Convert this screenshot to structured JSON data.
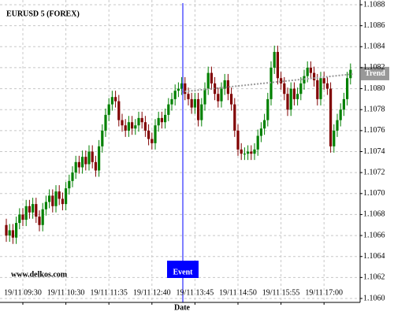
{
  "chart_data": {
    "type": "candlestick",
    "title": "EURUSD 5 (FOREX)",
    "x_label": "Date",
    "watermark": "www.delkos.com",
    "up_color": "#008000",
    "down_color": "#800000",
    "grid": true,
    "ylim": [
      1.106,
      1.1088
    ],
    "yticks": [
      {
        "value": 1.106,
        "label": "1.1060"
      },
      1.1062,
      1.1064,
      1.1066,
      1.1068,
      {
        "value": 1.107,
        "label": "1.1070"
      },
      1.1072,
      1.1074,
      1.1076,
      1.1078,
      {
        "value": 1.108,
        "label": "1.1080"
      },
      1.1082,
      1.1084,
      1.1086,
      1.1088
    ],
    "categories": [
      null,
      null,
      null,
      null,
      null,
      "19/11 09:30",
      null,
      null,
      null,
      null,
      null,
      null,
      null,
      null,
      null,
      null,
      null,
      null,
      "19/11 10:30",
      null,
      null,
      null,
      null,
      null,
      null,
      null,
      null,
      null,
      null,
      null,
      null,
      "19/11 11:35",
      null,
      null,
      null,
      null,
      null,
      null,
      null,
      null,
      null,
      null,
      null,
      null,
      "19/11 12:40",
      null,
      null,
      null,
      null,
      null,
      null,
      null,
      null,
      null,
      null,
      null,
      null,
      "19/11 13:45",
      null,
      null,
      null,
      null,
      null,
      null,
      null,
      null,
      null,
      null,
      null,
      null,
      "19/11 14:50",
      null,
      null,
      null,
      null,
      null,
      null,
      null,
      null,
      null,
      null,
      null,
      null,
      "19/11 15:55",
      null,
      null,
      null,
      null,
      null,
      null,
      null,
      null,
      null,
      null,
      null,
      null,
      "19/11 17:00",
      null,
      null,
      null,
      null,
      null,
      null,
      null,
      null
    ],
    "open": [
      1.1067,
      1.1066,
      1.10665,
      1.10658,
      1.10672,
      1.1068,
      1.10675,
      1.10688,
      1.10682,
      1.1069,
      1.10678,
      1.1067,
      1.10685,
      1.10692,
      1.10698,
      1.10688,
      1.10702,
      1.10695,
      1.1069,
      1.10705,
      1.10712,
      1.1072,
      1.1073,
      1.10725,
      1.10735,
      1.10728,
      1.1074,
      1.1073,
      1.10722,
      1.10745,
      1.1076,
      1.10775,
      1.10785,
      1.10792,
      1.10788,
      1.1077,
      1.10765,
      1.1076,
      1.10768,
      1.10762,
      1.10765,
      1.10772,
      1.10768,
      1.1076,
      1.10752,
      1.10748,
      1.10765,
      1.10772,
      1.10768,
      1.10775,
      1.10785,
      1.1079,
      1.10798,
      1.108,
      1.10805,
      1.10795,
      1.1079,
      1.10782,
      1.1079,
      1.1077,
      1.10785,
      1.108,
      1.10815,
      1.10805,
      1.10795,
      1.10788,
      1.108,
      1.10808,
      1.10795,
      1.10785,
      1.1076,
      1.10742,
      1.10738,
      1.10738,
      1.1074,
      1.10738,
      1.10742,
      1.10755,
      1.10762,
      1.1077,
      1.1079,
      1.1082,
      1.10835,
      1.1081,
      1.10805,
      1.10795,
      1.1078,
      1.108,
      1.1079,
      1.10795,
      1.10805,
      1.10812,
      1.1082,
      1.10815,
      1.10808,
      1.1079,
      1.1081,
      1.10805,
      1.108,
      1.10745,
      1.1076,
      1.1077,
      1.1078,
      1.1079,
      1.1081
    ],
    "high": [
      1.10676,
      1.10671,
      1.10671,
      1.10678,
      1.10686,
      1.10686,
      1.10694,
      1.10694,
      1.10696,
      1.10696,
      1.10684,
      1.10691,
      1.10698,
      1.10704,
      1.10704,
      1.10708,
      1.10708,
      1.10701,
      1.10711,
      1.10718,
      1.10726,
      1.10736,
      1.10736,
      1.10741,
      1.10741,
      1.10746,
      1.10746,
      1.10736,
      1.10751,
      1.10766,
      1.10781,
      1.10791,
      1.10798,
      1.10798,
      1.10794,
      1.10776,
      1.10771,
      1.10774,
      1.10774,
      1.10771,
      1.10778,
      1.10778,
      1.10774,
      1.10766,
      1.10758,
      1.10771,
      1.10778,
      1.10778,
      1.10781,
      1.10791,
      1.10796,
      1.10804,
      1.10806,
      1.10811,
      1.10811,
      1.10801,
      1.10796,
      1.10796,
      1.10796,
      1.10791,
      1.10806,
      1.10821,
      1.10821,
      1.10811,
      1.10801,
      1.10806,
      1.10814,
      1.10814,
      1.10801,
      1.10791,
      1.10766,
      1.10748,
      1.10744,
      1.10746,
      1.10746,
      1.10748,
      1.10761,
      1.10768,
      1.10776,
      1.10796,
      1.10826,
      1.10841,
      1.10841,
      1.10816,
      1.10811,
      1.10801,
      1.10806,
      1.10806,
      1.10801,
      1.10811,
      1.10818,
      1.10826,
      1.10826,
      1.10821,
      1.10814,
      1.10816,
      1.10816,
      1.10811,
      1.10806,
      1.10766,
      1.10776,
      1.10786,
      1.10796,
      1.10816,
      1.10824
    ],
    "low": [
      1.10654,
      1.10654,
      1.10652,
      1.10652,
      1.10666,
      1.10669,
      1.10669,
      1.10676,
      1.10676,
      1.10672,
      1.10664,
      1.10664,
      1.10679,
      1.10686,
      1.10682,
      1.10682,
      1.10689,
      1.10684,
      1.10684,
      1.10699,
      1.10706,
      1.10714,
      1.10719,
      1.10719,
      1.10722,
      1.10722,
      1.10724,
      1.10716,
      1.10716,
      1.10739,
      1.10754,
      1.10769,
      1.10779,
      1.10782,
      1.10764,
      1.10759,
      1.10754,
      1.10754,
      1.10756,
      1.10756,
      1.10759,
      1.10762,
      1.10754,
      1.10746,
      1.10742,
      1.10742,
      1.10759,
      1.10762,
      1.10762,
      1.10769,
      1.10779,
      1.10784,
      1.10792,
      1.10794,
      1.10789,
      1.10784,
      1.10776,
      1.10776,
      1.10764,
      1.10764,
      1.10779,
      1.10794,
      1.10799,
      1.10789,
      1.10782,
      1.10782,
      1.10794,
      1.10789,
      1.10779,
      1.10754,
      1.10736,
      1.10732,
      1.10732,
      1.10732,
      1.10732,
      1.10732,
      1.10736,
      1.10749,
      1.10756,
      1.10764,
      1.10784,
      1.10814,
      1.10804,
      1.10799,
      1.10789,
      1.10774,
      1.10774,
      1.10784,
      1.10784,
      1.10789,
      1.10799,
      1.10806,
      1.10809,
      1.10802,
      1.10784,
      1.10784,
      1.10799,
      1.10794,
      1.10739,
      1.10739,
      1.10754,
      1.10764,
      1.10774,
      1.10784,
      1.10804
    ],
    "close": [
      1.1066,
      1.10665,
      1.10658,
      1.10672,
      1.1068,
      1.10675,
      1.10688,
      1.10682,
      1.1069,
      1.10678,
      1.1067,
      1.10685,
      1.10692,
      1.10698,
      1.10688,
      1.10702,
      1.10695,
      1.1069,
      1.10705,
      1.10712,
      1.1072,
      1.1073,
      1.10725,
      1.10735,
      1.10728,
      1.1074,
      1.1073,
      1.10722,
      1.10745,
      1.1076,
      1.10775,
      1.10785,
      1.10792,
      1.10788,
      1.1077,
      1.10765,
      1.1076,
      1.10768,
      1.10762,
      1.10765,
      1.10772,
      1.10768,
      1.1076,
      1.10752,
      1.10748,
      1.10765,
      1.10772,
      1.10768,
      1.10775,
      1.10785,
      1.1079,
      1.10798,
      1.108,
      1.10805,
      1.10795,
      1.1079,
      1.10782,
      1.1079,
      1.1077,
      1.10785,
      1.108,
      1.10815,
      1.10805,
      1.10795,
      1.10788,
      1.108,
      1.10808,
      1.10795,
      1.10785,
      1.1076,
      1.10742,
      1.10738,
      1.10738,
      1.1074,
      1.10738,
      1.10742,
      1.10755,
      1.10762,
      1.1077,
      1.1079,
      1.1082,
      1.10835,
      1.1081,
      1.10805,
      1.10795,
      1.1078,
      1.108,
      1.1079,
      1.10795,
      1.10805,
      1.10812,
      1.1082,
      1.10815,
      1.10808,
      1.1079,
      1.1081,
      1.10805,
      1.108,
      1.10745,
      1.1076,
      1.1077,
      1.1078,
      1.1079,
      1.1081,
      1.10818
    ],
    "event": {
      "label": "Event",
      "color": "#0000ff"
    },
    "trend": {
      "label": "Trend",
      "start": 1.10797,
      "end": 1.10814,
      "color": "#999999"
    }
  }
}
